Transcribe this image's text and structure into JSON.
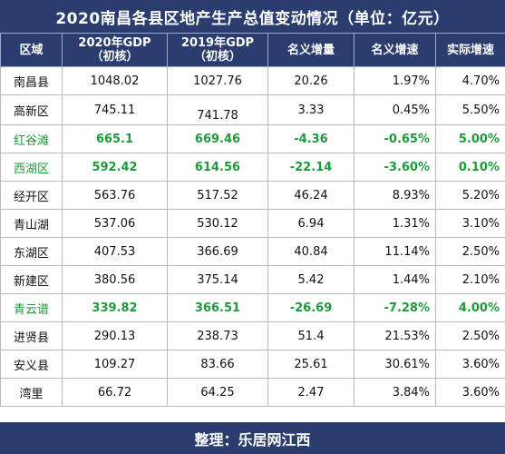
{
  "title": "2020南昌各县区地产生产总值变动情况（单位：亿元）",
  "headers": {
    "region": "区域",
    "gdp2020_line1": "2020年GDP",
    "gdp2020_line2": "（初核）",
    "gdp2019_line1": "2019年GDP",
    "gdp2019_line2": "（初核）",
    "nominal_increase": "名义增量",
    "nominal_growth": "名义增速",
    "real_growth": "实际增速"
  },
  "rows": [
    {
      "region": "南昌县",
      "gdp2020": "1048.02",
      "gdp2019": "1027.76",
      "increase": "20.26",
      "nominal": "1.97%",
      "real": "4.70%"
    },
    {
      "region": "高新区",
      "gdp2020": "745.11",
      "gdp2019": "741.78",
      "increase": "3.33",
      "nominal": "0.45%",
      "real": "5.50%"
    },
    {
      "region": "红谷滩",
      "gdp2020": "665.1",
      "gdp2019": "669.46",
      "increase": "-4.36",
      "nominal": "-0.65%",
      "real": "5.00%"
    },
    {
      "region": "西湖区",
      "gdp2020": "592.42",
      "gdp2019": "614.56",
      "increase": "-22.14",
      "nominal": "-3.60%",
      "real": "0.10%"
    },
    {
      "region": "经开区",
      "gdp2020": "563.76",
      "gdp2019": "517.52",
      "increase": "46.24",
      "nominal": "8.93%",
      "real": "5.20%"
    },
    {
      "region": "青山湖",
      "gdp2020": "537.06",
      "gdp2019": "530.12",
      "increase": "6.94",
      "nominal": "1.31%",
      "real": "3.10%"
    },
    {
      "region": "东湖区",
      "gdp2020": "407.53",
      "gdp2019": "366.69",
      "increase": "40.84",
      "nominal": "11.14%",
      "real": "2.50%"
    },
    {
      "region": "新建区",
      "gdp2020": "380.56",
      "gdp2019": "375.14",
      "increase": "5.42",
      "nominal": "1.44%",
      "real": "2.10%"
    },
    {
      "region": "青云谱",
      "gdp2020": "339.82",
      "gdp2019": "366.51",
      "increase": "-26.69",
      "nominal": "-7.28%",
      "real": "4.00%"
    },
    {
      "region": "进贤县",
      "gdp2020": "290.13",
      "gdp2019": "238.73",
      "increase": "51.4",
      "nominal": "21.53%",
      "real": "2.50%"
    },
    {
      "region": "安义县",
      "gdp2020": "109.27",
      "gdp2019": "83.66",
      "increase": "25.61",
      "nominal": "30.61%",
      "real": "3.60%"
    },
    {
      "region": "湾里",
      "gdp2020": "66.72",
      "gdp2019": "64.25",
      "increase": "2.47",
      "nominal": "3.84%",
      "real": "3.60%"
    }
  ],
  "highlight_color": "#1f9a3a",
  "header_color": "#2a3d6e",
  "footer": "整理：乐居网江西"
}
